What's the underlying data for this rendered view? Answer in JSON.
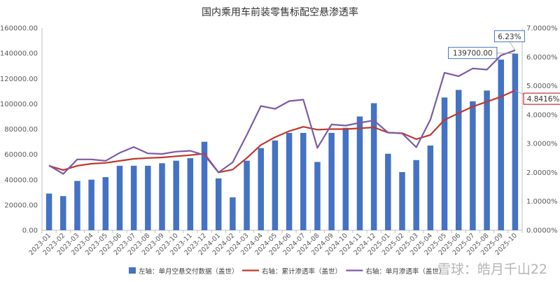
{
  "watermark": "雪球：皓月千山22",
  "chart_data": {
    "type": "bar",
    "title": "国内乘用车前装零售标配空悬渗透率",
    "categories": [
      "2023-01",
      "2023-02",
      "2023-03",
      "2023-04",
      "2023-05",
      "2023-06",
      "2023-07",
      "2023-08",
      "2023-09",
      "2023-10",
      "2023-11",
      "2023-12",
      "2024-01",
      "2024-02",
      "2024-03",
      "2024-04",
      "2024-05",
      "2024-06",
      "2024-07",
      "2024-08",
      "2024-09",
      "2024-10",
      "2024-11",
      "2024-12",
      "2025-01",
      "2025-02",
      "2025-03",
      "2025-04",
      "2025-05",
      "2025-06",
      "2025-07",
      "2025-08",
      "2025-09",
      "2025-10"
    ],
    "left_axis": {
      "min": 0,
      "max": 160000,
      "step": 20000,
      "tick_labels": [
        "0.00",
        "20000.00",
        "40000.00",
        "60000.00",
        "80000.00",
        "100000.00",
        "120000.00",
        "140000.00",
        "160000.00"
      ]
    },
    "right_axis": {
      "min": 0,
      "max": 7,
      "step": 1,
      "tick_labels": [
        "0.0000%",
        "1.0000%",
        "2.0000%",
        "3.0000%",
        "4.0000%",
        "5.0000%",
        "6.0000%",
        "7.0000%"
      ]
    },
    "series": [
      {
        "name": "左轴：单月空悬交付数据（盖世）",
        "type": "bar",
        "axis": "left",
        "color": "#4472C4",
        "values": [
          29000,
          27000,
          39000,
          40000,
          42000,
          51000,
          51000,
          51000,
          53000,
          55000,
          57000,
          70000,
          41000,
          26000,
          55000,
          65000,
          71000,
          77000,
          77000,
          54000,
          77000,
          81000,
          90000,
          100500,
          60500,
          46000,
          55500,
          67000,
          105000,
          111000,
          102000,
          110500,
          135000,
          139700
        ]
      },
      {
        "name": "右轴：累计渗透率（盖世）",
        "type": "line",
        "axis": "right",
        "color": "#C0392B",
        "values": [
          2.23,
          2.08,
          2.23,
          2.3,
          2.33,
          2.4,
          2.47,
          2.5,
          2.52,
          2.56,
          2.6,
          2.65,
          2.0,
          2.1,
          2.5,
          2.95,
          3.22,
          3.43,
          3.58,
          3.48,
          3.5,
          3.5,
          3.53,
          3.56,
          3.38,
          3.36,
          3.15,
          3.3,
          3.82,
          4.05,
          4.28,
          4.45,
          4.62,
          4.8416
        ]
      },
      {
        "name": "右轴：单月渗透率（盖世）",
        "type": "line",
        "axis": "right",
        "color": "#7D5BA6",
        "values": [
          2.24,
          1.95,
          2.45,
          2.45,
          2.4,
          2.68,
          2.88,
          2.66,
          2.64,
          2.72,
          2.75,
          2.6,
          2.0,
          2.35,
          3.3,
          4.3,
          4.2,
          4.47,
          4.52,
          2.85,
          3.66,
          3.62,
          3.72,
          3.8,
          3.38,
          3.35,
          2.87,
          3.83,
          5.45,
          5.33,
          5.6,
          5.56,
          6.05,
          6.23
        ]
      }
    ],
    "annotations": [
      {
        "text": "139700.00",
        "series": 0,
        "index": 33
      },
      {
        "text": "6.23%",
        "series": 2,
        "index": 33
      },
      {
        "text": "4.8416%",
        "series": 1,
        "index": 33
      }
    ],
    "legend_position": "bottom",
    "grid": false
  }
}
